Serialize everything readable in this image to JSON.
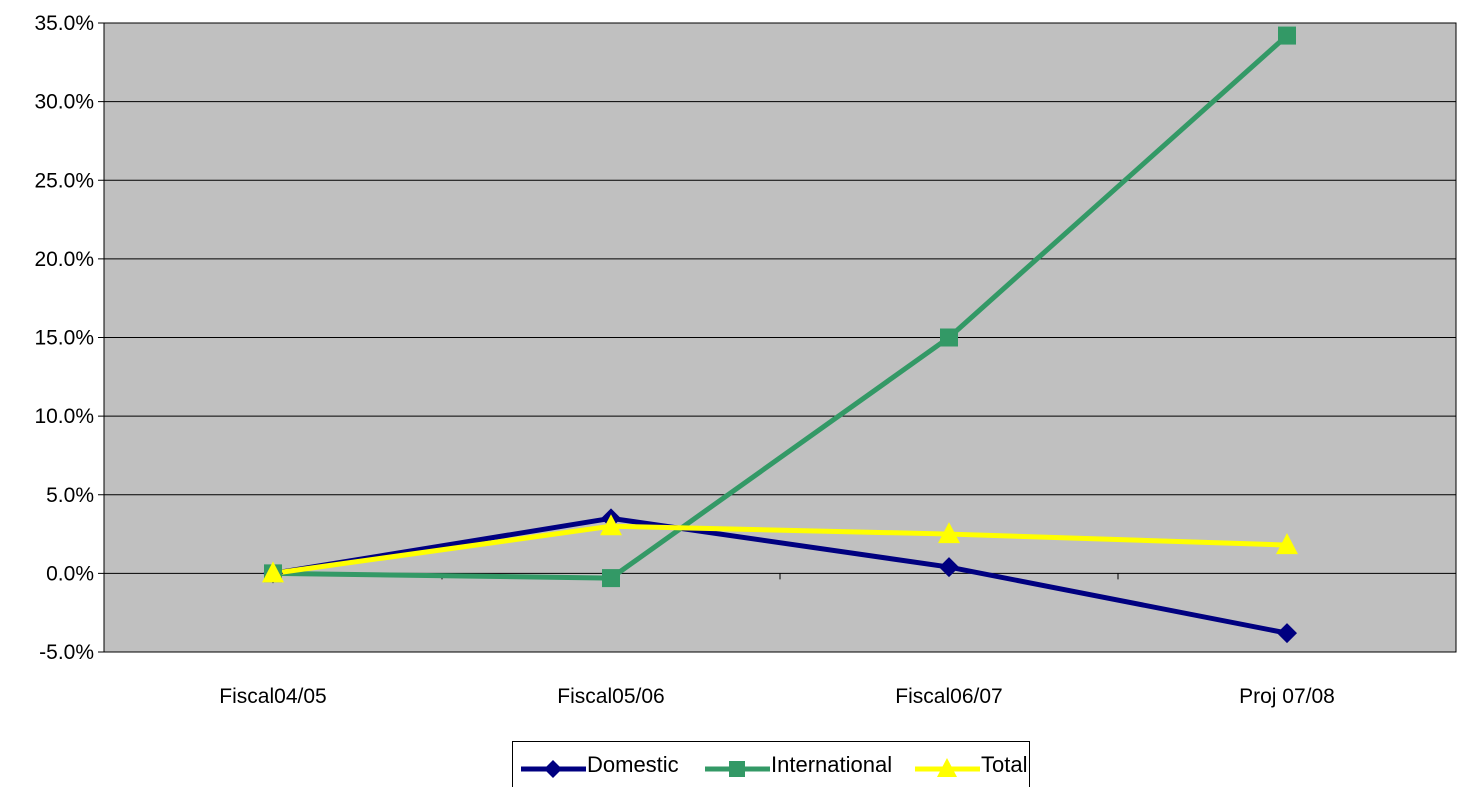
{
  "chart_data": {
    "type": "line",
    "title": "",
    "xlabel": "",
    "ylabel": "",
    "categories": [
      "Fiscal04/05",
      "Fiscal05/06",
      "Fiscal06/07",
      "Proj 07/08"
    ],
    "ylim": [
      -5,
      35
    ],
    "yticks": [
      -5,
      0,
      5,
      10,
      15,
      20,
      25,
      30,
      35
    ],
    "ytick_labels": [
      "-5.0%",
      "0.0%",
      "5.0%",
      "10.0%",
      "15.0%",
      "20.0%",
      "25.0%",
      "30.0%",
      "35.0%"
    ],
    "grid": "horizontal",
    "plot_background": "#C0C0C0",
    "legend_position": "bottom",
    "series": [
      {
        "name": "Domestic",
        "values": [
          0.0,
          3.5,
          0.4,
          -3.8
        ],
        "color": "#000080",
        "marker": "diamond"
      },
      {
        "name": "International",
        "values": [
          0.0,
          -0.3,
          15.0,
          34.2
        ],
        "color": "#339966",
        "marker": "square"
      },
      {
        "name": "Total",
        "values": [
          0.0,
          3.0,
          2.5,
          1.8
        ],
        "color": "#FFFF00",
        "marker": "triangle"
      }
    ]
  }
}
